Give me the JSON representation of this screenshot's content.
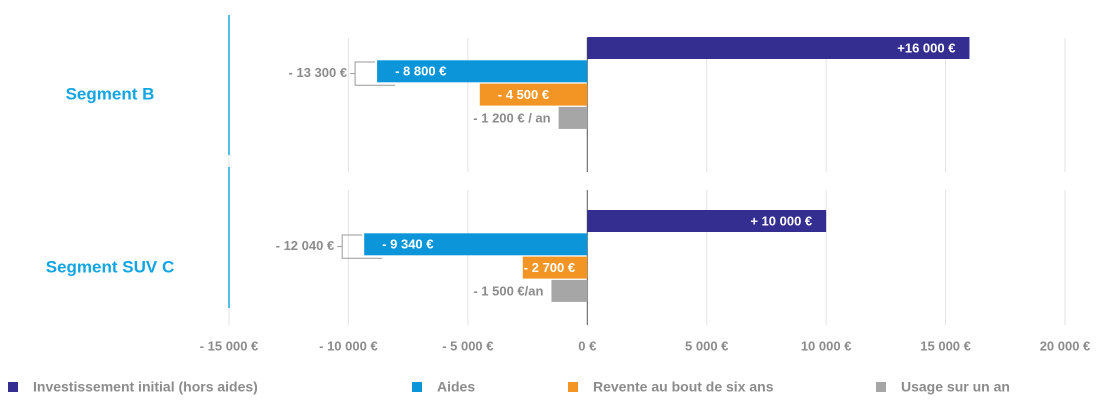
{
  "chart_data": {
    "type": "hbar",
    "categories": [
      "Segment B",
      "Segment SUV C"
    ],
    "series": [
      {
        "name": "Investissement initial (hors aides)",
        "color": "#332e8f",
        "values": [
          16000,
          10000
        ],
        "value_labels": [
          "+16 000 €",
          "+ 10 000 €"
        ]
      },
      {
        "name": "Aides",
        "color": "#0c96d9",
        "values": [
          -8800,
          -9340
        ],
        "value_labels": [
          "- 8 800 €",
          "- 9 340 €"
        ]
      },
      {
        "name": "Revente au bout de six ans",
        "color": "#f39524",
        "values": [
          -4500,
          -2700
        ],
        "value_labels": [
          "- 4 500 €",
          "- 2 700 €"
        ]
      },
      {
        "name": "Usage sur un an",
        "color": "#a6a6a6",
        "values": [
          -1200,
          -1500
        ],
        "value_labels": [
          "- 1 200 € / an",
          "- 1 500 €/an"
        ]
      }
    ],
    "annotations": [
      "- 13 300 €",
      "- 12 040 €"
    ],
    "xlim": [
      -15000,
      20000
    ],
    "xticks": [
      {
        "value": -15000,
        "label": "- 15 000 €"
      },
      {
        "value": -10000,
        "label": "- 10 000 €"
      },
      {
        "value": -5000,
        "label": "- 5 000 €"
      },
      {
        "value": 0,
        "label": "0 €"
      },
      {
        "value": 5000,
        "label": "5 000 €"
      },
      {
        "value": 10000,
        "label": "10 000 €"
      },
      {
        "value": 15000,
        "label": "15 000 €"
      },
      {
        "value": 20000,
        "label": "20 000 €"
      }
    ],
    "grid": true
  }
}
